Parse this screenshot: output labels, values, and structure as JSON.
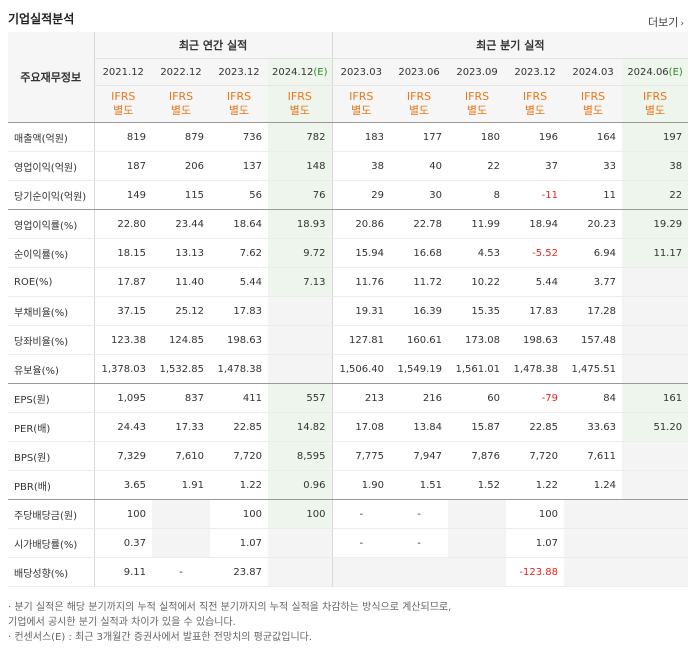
{
  "title": "기업실적분석",
  "more_label": "더보기",
  "corner_label": "주요재무정보",
  "groups": {
    "annual": "최근 연간 실적",
    "quarter": "최근 분기 실적"
  },
  "columns": [
    "2021.12",
    "2022.12",
    "2023.12",
    "2024.12(E)",
    "2023.03",
    "2023.06",
    "2023.09",
    "2023.12",
    "2024.03",
    "2024.06(E)"
  ],
  "ifrs_line1": "IFRS",
  "ifrs_line2": "별도",
  "rows": [
    {
      "label": "매출액(억원)",
      "values": [
        "819",
        "879",
        "736",
        "782",
        "183",
        "177",
        "180",
        "196",
        "164",
        "197"
      ]
    },
    {
      "label": "영업이익(억원)",
      "values": [
        "187",
        "206",
        "137",
        "148",
        "38",
        "40",
        "22",
        "37",
        "33",
        "38"
      ]
    },
    {
      "label": "당기순이익(억원)",
      "values": [
        "149",
        "115",
        "56",
        "76",
        "29",
        "30",
        "8",
        "-11",
        "11",
        "22"
      ]
    },
    {
      "label": "영업이익률(%)",
      "values": [
        "22.80",
        "23.44",
        "18.64",
        "18.93",
        "20.86",
        "22.78",
        "11.99",
        "18.94",
        "20.23",
        "19.29"
      ]
    },
    {
      "label": "순이익률(%)",
      "values": [
        "18.15",
        "13.13",
        "7.62",
        "9.72",
        "15.94",
        "16.68",
        "4.53",
        "-5.52",
        "6.94",
        "11.17"
      ]
    },
    {
      "label": "ROE(%)",
      "values": [
        "17.87",
        "11.40",
        "5.44",
        "7.13",
        "11.76",
        "11.72",
        "10.22",
        "5.44",
        "3.77",
        ""
      ]
    },
    {
      "label": "부채비율(%)",
      "values": [
        "37.15",
        "25.12",
        "17.83",
        "",
        "19.31",
        "16.39",
        "15.35",
        "17.83",
        "17.28",
        ""
      ]
    },
    {
      "label": "당좌비율(%)",
      "values": [
        "123.38",
        "124.85",
        "198.63",
        "",
        "127.81",
        "160.61",
        "173.08",
        "198.63",
        "157.48",
        ""
      ]
    },
    {
      "label": "유보율(%)",
      "values": [
        "1,378.03",
        "1,532.85",
        "1,478.38",
        "",
        "1,506.40",
        "1,549.19",
        "1,561.01",
        "1,478.38",
        "1,475.51",
        ""
      ]
    },
    {
      "label": "EPS(원)",
      "values": [
        "1,095",
        "837",
        "411",
        "557",
        "213",
        "216",
        "60",
        "-79",
        "84",
        "161"
      ]
    },
    {
      "label": "PER(배)",
      "values": [
        "24.43",
        "17.33",
        "22.85",
        "14.82",
        "17.08",
        "13.84",
        "15.87",
        "22.85",
        "33.63",
        "51.20"
      ]
    },
    {
      "label": "BPS(원)",
      "values": [
        "7,329",
        "7,610",
        "7,720",
        "8,595",
        "7,775",
        "7,947",
        "7,876",
        "7,720",
        "7,611",
        ""
      ]
    },
    {
      "label": "PBR(배)",
      "values": [
        "3.65",
        "1.91",
        "1.22",
        "0.96",
        "1.90",
        "1.51",
        "1.52",
        "1.22",
        "1.24",
        ""
      ]
    },
    {
      "label": "주당배당금(원)",
      "values": [
        "100",
        "",
        "100",
        "100",
        "-",
        "-",
        "",
        "100",
        "",
        ""
      ]
    },
    {
      "label": "시가배당률(%)",
      "values": [
        "0.37",
        "",
        "1.07",
        "",
        "-",
        "-",
        "",
        "1.07",
        "",
        ""
      ]
    },
    {
      "label": "배당성향(%)",
      "values": [
        "9.11",
        "-",
        "23.87",
        "",
        "",
        "",
        "",
        "-123.88",
        "",
        ""
      ]
    }
  ],
  "notes": [
    "· 분기 실적은 해당 분기까지의 누적 실적에서 직전 분기까지의 누적 실적을 차감하는 방식으로 계산되므로,",
    "  기업에서 공시한 분기 실적과 차이가 있을 수 있습니다.",
    "· 컨센서스(E) : 최근 3개월간 증권사에서 발표한 전망치의 평균값입니다."
  ]
}
